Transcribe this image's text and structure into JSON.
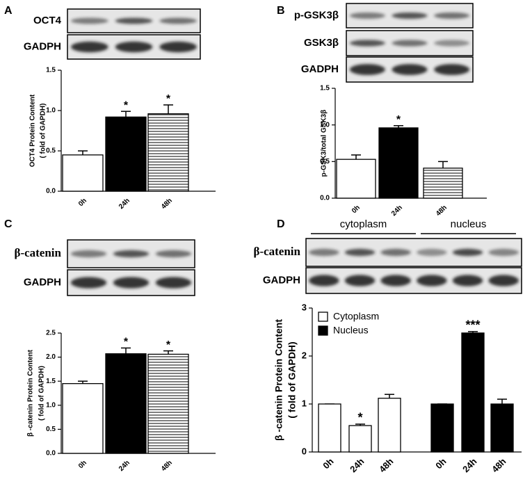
{
  "panel_labels": [
    "A",
    "B",
    "C",
    "D"
  ],
  "blots": [
    {
      "rows": [
        "OCT4",
        "GADPH"
      ]
    },
    {
      "rows": [
        "p-GSK3β",
        "GSK3β",
        "GADPH"
      ]
    },
    {
      "rows": [
        "β-catenin",
        "GADPH"
      ]
    },
    {
      "rows": [
        "β-catenin",
        "GADPH"
      ],
      "groups": [
        "cytoplasm",
        "nucleus"
      ]
    }
  ],
  "chart_data": [
    {
      "type": "bar",
      "ylabel": [
        "OCT4 Protein Content",
        "( fold of GAPDH)"
      ],
      "categories": [
        "0h",
        "24h",
        "48h"
      ],
      "values": [
        0.45,
        0.92,
        0.96
      ],
      "errors": [
        0.05,
        0.07,
        0.11
      ],
      "fills": [
        "white",
        "black",
        "hstripe"
      ],
      "annotations": [
        {
          "index": 1,
          "text": "*"
        },
        {
          "index": 2,
          "text": "*"
        }
      ],
      "ylim": [
        0,
        1.5
      ],
      "yticks": [
        {
          "value": 0,
          "label": "0.0"
        },
        {
          "value": 0.5,
          "label": "0.5"
        },
        {
          "value": 1,
          "label": "1.0"
        },
        {
          "value": 1.5,
          "label": "1.5"
        }
      ]
    },
    {
      "type": "bar",
      "ylabel": [
        "p-GSK3/total GSK3β"
      ],
      "categories": [
        "0h",
        "24h",
        "48h"
      ],
      "values": [
        0.53,
        0.96,
        0.41
      ],
      "errors": [
        0.06,
        0.03,
        0.09
      ],
      "fills": [
        "white",
        "black",
        "hstripe"
      ],
      "annotations": [
        {
          "index": 1,
          "text": "*"
        }
      ],
      "ylim": [
        0,
        1.5
      ],
      "yticks": [
        {
          "value": 0,
          "label": "0.0"
        },
        {
          "value": 0.5,
          "label": "0.5"
        },
        {
          "value": 1,
          "label": "1.0"
        },
        {
          "value": 1.5,
          "label": "1.5"
        }
      ]
    },
    {
      "type": "bar",
      "ylabel": [
        "β -catenin Protein Content",
        "( fold of GAPDH)"
      ],
      "categories": [
        "0h",
        "24h",
        "48h"
      ],
      "values": [
        1.45,
        2.07,
        2.06
      ],
      "errors": [
        0.05,
        0.12,
        0.07
      ],
      "fills": [
        "white",
        "black",
        "hstripe"
      ],
      "annotations": [
        {
          "index": 1,
          "text": "*"
        },
        {
          "index": 2,
          "text": "*"
        }
      ],
      "ylim": [
        0,
        2.5
      ],
      "yticks": [
        {
          "value": 0,
          "label": "0.0"
        },
        {
          "value": 0.5,
          "label": "0.5"
        },
        {
          "value": 1,
          "label": "1.0"
        },
        {
          "value": 1.5,
          "label": "1.5"
        },
        {
          "value": 2,
          "label": "2.0"
        },
        {
          "value": 2.5,
          "label": "2.5"
        }
      ]
    },
    {
      "type": "grouped_bar",
      "ylabel": [
        "β -catenin Protein Content",
        "( fold of GAPDH)"
      ],
      "categories": [
        "0h",
        "24h",
        "48h"
      ],
      "series": [
        {
          "name": "Cytoplasm",
          "color": "white",
          "values": [
            1.0,
            0.55,
            1.12
          ],
          "errors": [
            0,
            0.03,
            0.08
          ]
        },
        {
          "name": "Nucleus",
          "color": "black",
          "values": [
            1.0,
            2.48,
            1.0
          ],
          "errors": [
            0,
            0.03,
            0.1
          ]
        }
      ],
      "annotations": [
        {
          "series": 0,
          "index": 1,
          "text": "*"
        },
        {
          "series": 1,
          "index": 1,
          "text": "***"
        }
      ],
      "legend": "upper-left",
      "ylim": [
        0,
        3
      ],
      "yticks": [
        0,
        1,
        2,
        3
      ]
    }
  ]
}
